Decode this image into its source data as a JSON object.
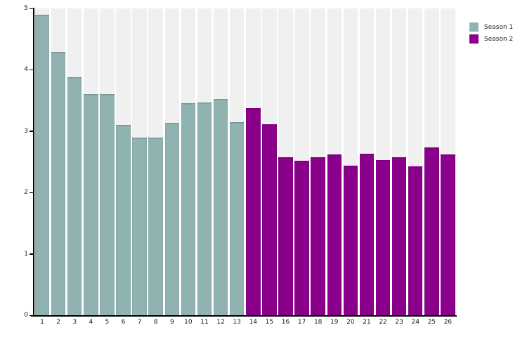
{
  "chart_data": {
    "type": "bar",
    "title": "",
    "xlabel": "",
    "ylabel": "",
    "categories": [
      "1",
      "2",
      "3",
      "4",
      "5",
      "6",
      "7",
      "8",
      "9",
      "10",
      "11",
      "12",
      "13",
      "14",
      "15",
      "16",
      "17",
      "18",
      "19",
      "20",
      "21",
      "22",
      "23",
      "24",
      "25",
      "26"
    ],
    "values": [
      4.9,
      4.29,
      3.88,
      3.61,
      3.6,
      3.1,
      2.9,
      2.9,
      3.14,
      3.45,
      3.47,
      3.52,
      3.15,
      3.37,
      3.11,
      2.58,
      2.52,
      2.57,
      2.62,
      2.44,
      2.63,
      2.53,
      2.57,
      2.43,
      2.74,
      2.62
    ],
    "series": [
      {
        "name": "Season 1",
        "color": "#90B3B2",
        "first_category": "1",
        "last_category": "13"
      },
      {
        "name": "Season 2",
        "color": "#8B008B",
        "first_category": "14",
        "last_category": "26"
      }
    ],
    "ylim": [
      0,
      5
    ],
    "yticks": [
      "0",
      "1",
      "2",
      "3",
      "4",
      "5"
    ],
    "grid": false,
    "legend_position": "top-right",
    "panel_stripe_color": "#F0F0F0",
    "axis_color": "#000000"
  }
}
